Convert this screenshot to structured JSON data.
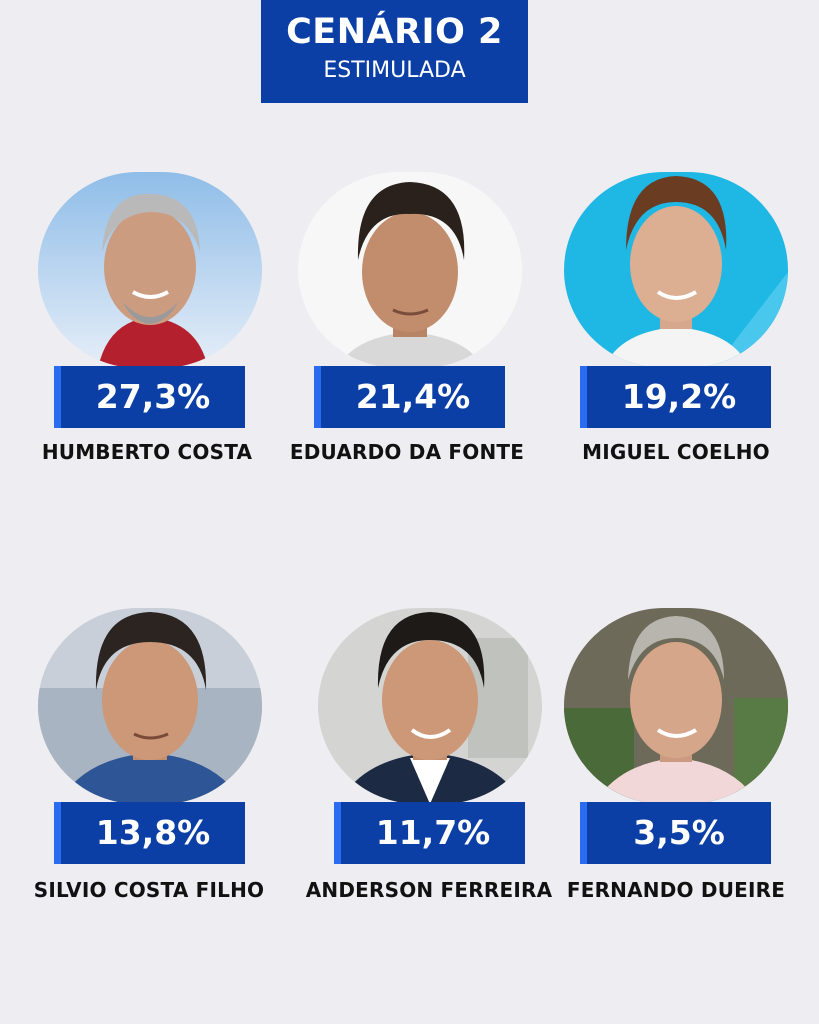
{
  "header": {
    "title": "CENÁRIO 2",
    "subtitle": "ESTIMULADA"
  },
  "colors": {
    "background": "#eeedf1",
    "accent_blue": "#0b3fa6",
    "accent_stripe": "#2a6cf0",
    "name_text": "#111111"
  },
  "candidates": [
    {
      "name": "HUMBERTO COSTA",
      "percent": "27,3%",
      "value": 27.3
    },
    {
      "name": "EDUARDO DA FONTE",
      "percent": "21,4%",
      "value": 21.4
    },
    {
      "name": "MIGUEL COELHO",
      "percent": "19,2%",
      "value": 19.2
    },
    {
      "name": "SILVIO COSTA FILHO",
      "percent": "13,8%",
      "value": 13.8
    },
    {
      "name": "ANDERSON FERREIRA",
      "percent": "11,7%",
      "value": 11.7
    },
    {
      "name": "FERNANDO DUEIRE",
      "percent": "3,5%",
      "value": 3.5
    }
  ]
}
